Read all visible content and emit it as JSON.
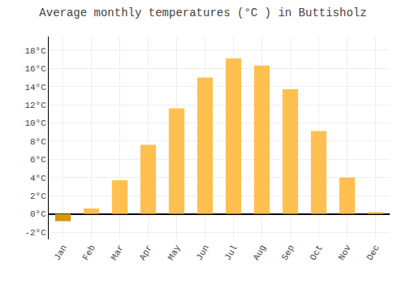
{
  "chart_data": {
    "type": "bar",
    "title": "Average monthly temperatures (°C ) in Buttisholz",
    "categories": [
      "Jan",
      "Feb",
      "Mar",
      "Apr",
      "May",
      "Jun",
      "Jul",
      "Aug",
      "Sep",
      "Oct",
      "Nov",
      "Dec"
    ],
    "values": [
      -0.8,
      0.6,
      3.7,
      7.6,
      11.6,
      15.0,
      17.1,
      16.3,
      13.7,
      9.1,
      4.0,
      0.2
    ],
    "colors": [
      "#D4960A",
      "#FFC050",
      "#FFC050",
      "#FFC050",
      "#FFC050",
      "#FFC050",
      "#FFC050",
      "#FFC050",
      "#FFC050",
      "#FFC050",
      "#FFC050",
      "#FFC050"
    ],
    "ylim": [
      -2.8,
      19.5
    ],
    "yticks": [
      {
        "value": -2,
        "label": "-2°C"
      },
      {
        "value": 0,
        "label": "0°C"
      },
      {
        "value": 2,
        "label": "2°C"
      },
      {
        "value": 4,
        "label": "4°C"
      },
      {
        "value": 6,
        "label": "6°C"
      },
      {
        "value": 8,
        "label": "8°C"
      },
      {
        "value": 10,
        "label": "10°C"
      },
      {
        "value": 12,
        "label": "12°C"
      },
      {
        "value": 14,
        "label": "14°C"
      },
      {
        "value": 16,
        "label": "16°C"
      },
      {
        "value": 18,
        "label": "18°C"
      }
    ],
    "grid": true
  }
}
